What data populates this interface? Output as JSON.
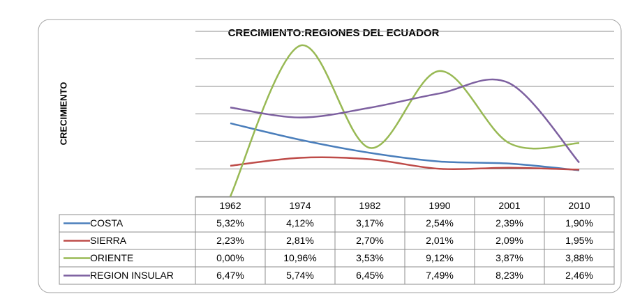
{
  "chart_data": {
    "type": "line",
    "title": "CRECIMIENTO:REGIONES DEL ECUADOR",
    "y_label": "CRECIMIENTO",
    "categories": [
      "1962",
      "1974",
      "1982",
      "1990",
      "2001",
      "2010"
    ],
    "series": [
      {
        "name": "COSTA",
        "color": "#4a7ebb",
        "values": [
          5.32,
          4.12,
          3.17,
          2.54,
          2.39,
          1.9
        ],
        "value_labels": [
          "5,32%",
          "4,12%",
          "3,17%",
          "2,54%",
          "2,39%",
          "1,90%"
        ]
      },
      {
        "name": "SIERRA",
        "color": "#be4b48",
        "values": [
          2.23,
          2.81,
          2.7,
          2.01,
          2.09,
          1.95
        ],
        "value_labels": [
          "2,23%",
          "2,81%",
          "2,70%",
          "2,01%",
          "2,09%",
          "1,95%"
        ]
      },
      {
        "name": "ORIENTE",
        "color": "#98b954",
        "values": [
          0.0,
          10.96,
          3.53,
          9.12,
          3.87,
          3.88
        ],
        "value_labels": [
          "0,00%",
          "10,96%",
          "3,53%",
          "9,12%",
          "3,87%",
          "3,88%"
        ]
      },
      {
        "name": "REGION INSULAR",
        "color": "#7d60a0",
        "values": [
          6.47,
          5.74,
          6.45,
          7.49,
          8.23,
          2.46
        ],
        "value_labels": [
          "6,47%",
          "5,74%",
          "6,45%",
          "7,49%",
          "8,23%",
          "2,46%"
        ]
      }
    ],
    "ylim": [
      0,
      12
    ],
    "yticks": [
      0,
      2,
      4,
      6,
      8,
      10,
      12
    ],
    "grid": true
  }
}
